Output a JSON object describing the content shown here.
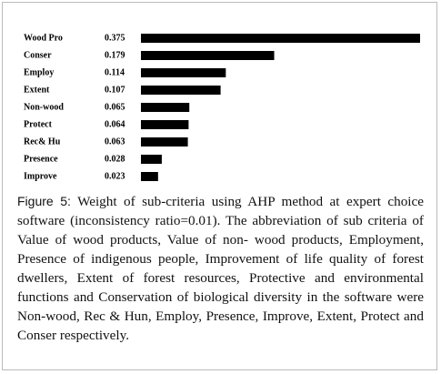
{
  "chart_data": {
    "type": "bar",
    "orientation": "horizontal",
    "categories": [
      "Wood Pro",
      "Conser",
      "Employ",
      "Extent",
      "Non-wood",
      "Protect",
      "Rec& Hu",
      "Presence",
      "Improve"
    ],
    "values": [
      0.375,
      0.179,
      0.114,
      0.107,
      0.065,
      0.064,
      0.063,
      0.028,
      0.023
    ],
    "color": "#000000"
  },
  "caption": {
    "label": "Figure 5:",
    "text": "Weight of sub-criteria using AHP method at expert choice software (inconsistency ratio=0.01). The abbreviation of sub criteria of Value of wood products, Value of non- wood products, Employment, Presence of indigenous people, Improvement of life quality of forest dwellers, Extent of forest resources, Protective and environmental functions and Conservation of biological diversity in the software were Non-wood, Rec & Hun, Employ, Presence, Improve, Extent, Protect and Conser respectively."
  }
}
